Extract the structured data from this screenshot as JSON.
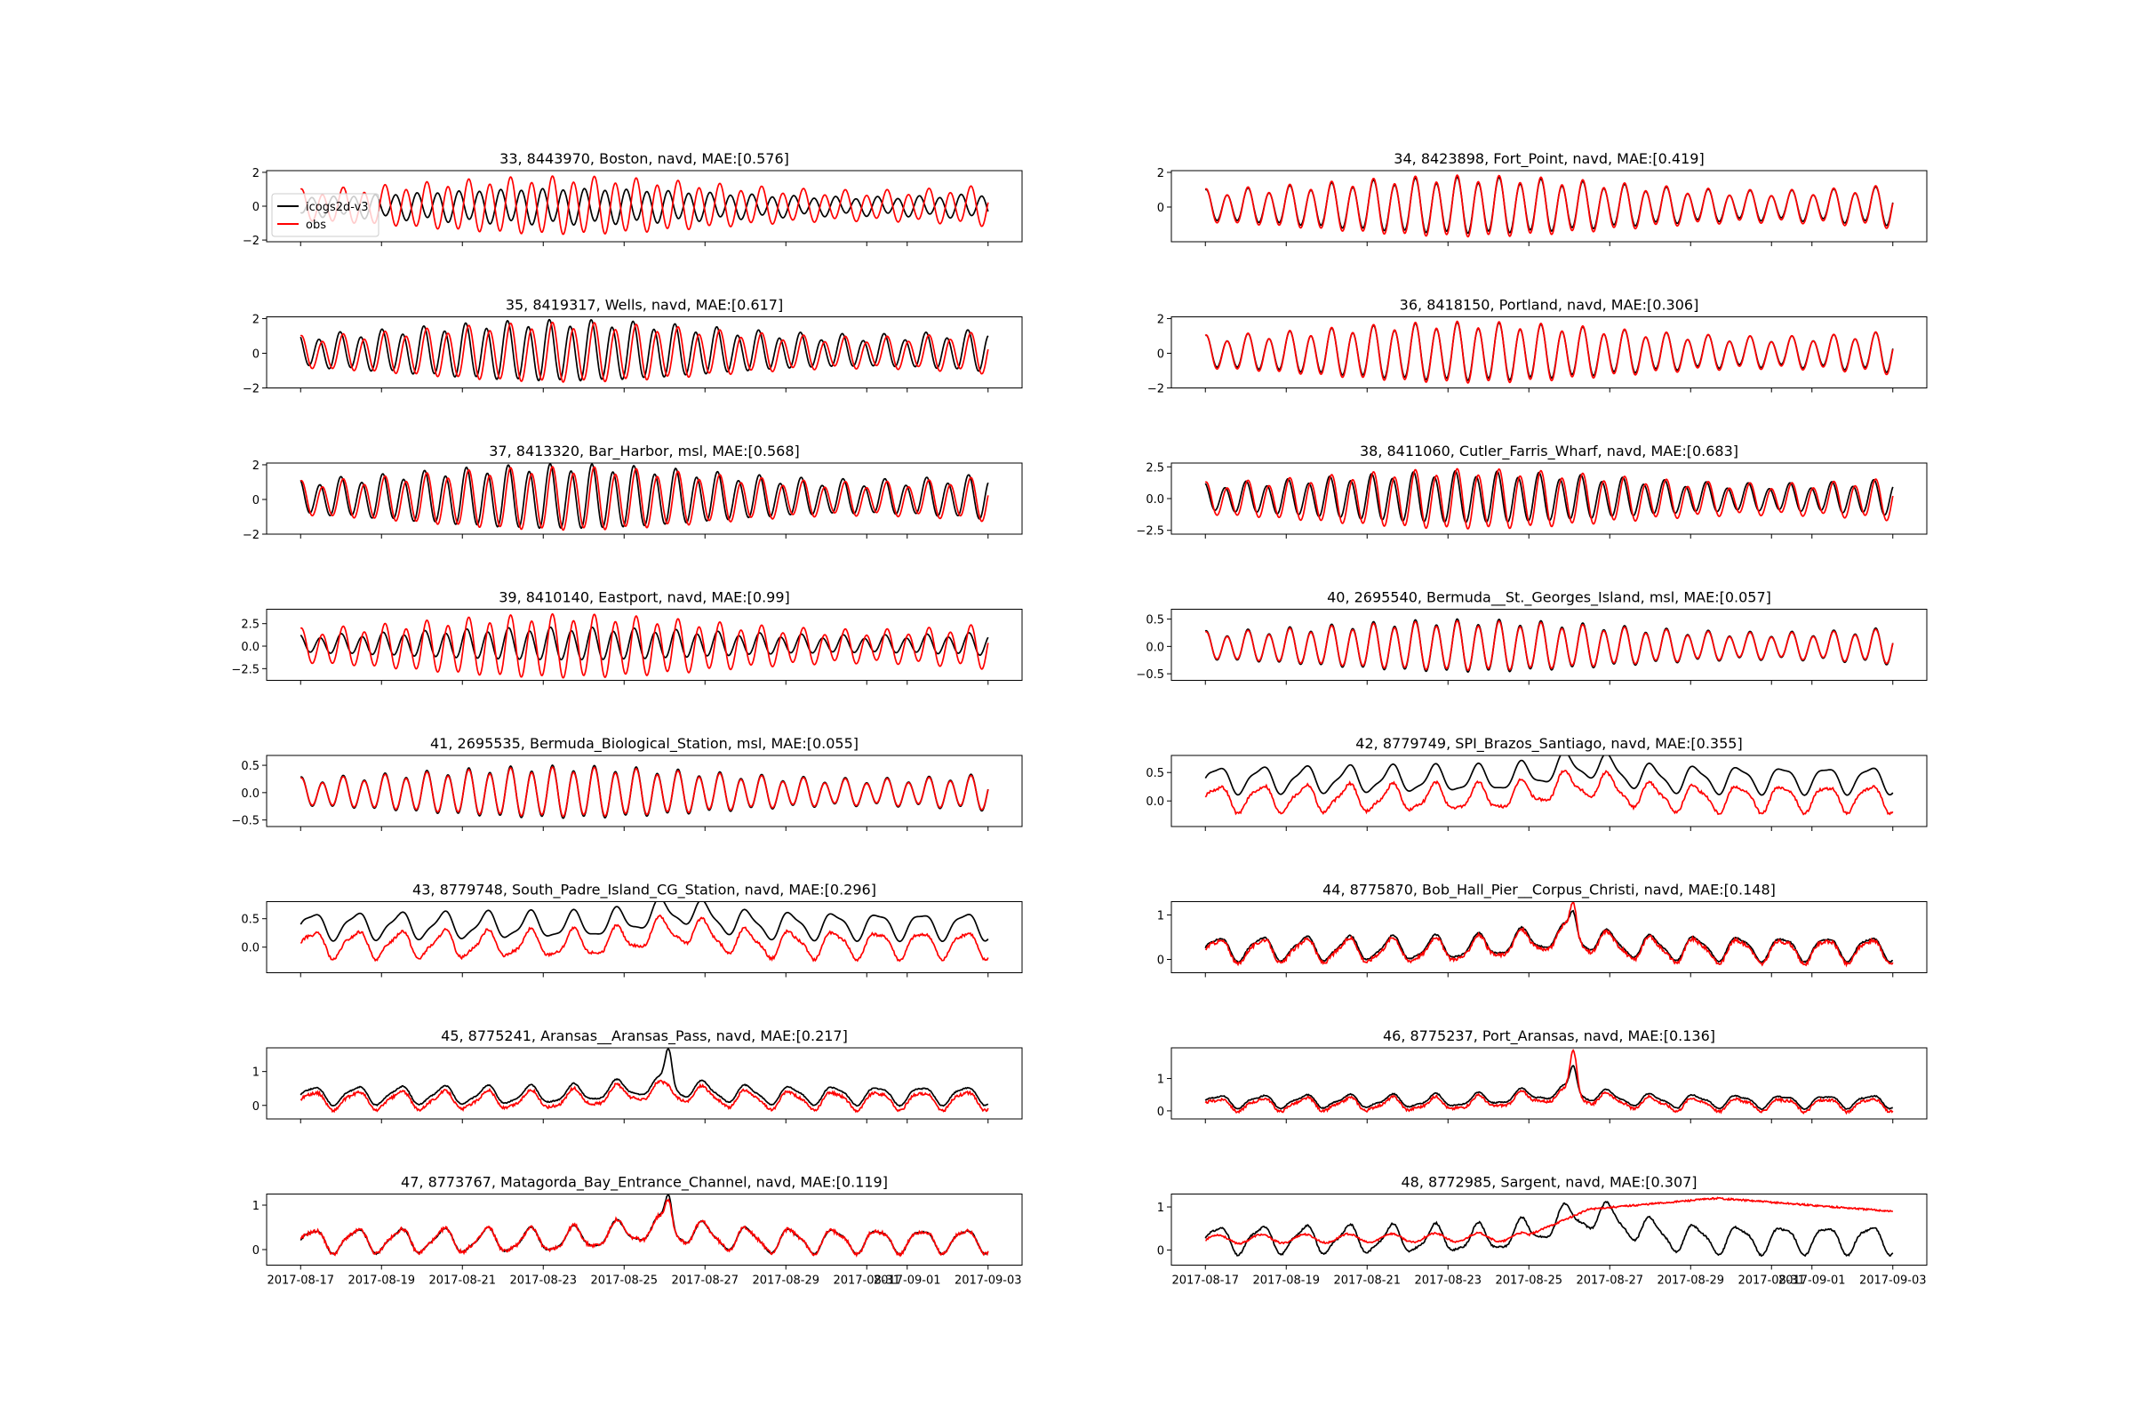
{
  "chart_data": {
    "type": "line",
    "x_range": [
      "2017-08-17",
      "2017-09-03"
    ],
    "x_ticks": [
      "2017-08-17",
      "2017-08-19",
      "2017-08-21",
      "2017-08-23",
      "2017-08-25",
      "2017-08-27",
      "2017-08-29",
      "2017-08-31",
      "2017-09-01",
      "2017-09-03"
    ],
    "legend": {
      "placement": "upper-left of first panel",
      "entries": [
        {
          "label": "icogs2d-v3",
          "color": "#000000"
        },
        {
          "label": "obs",
          "color": "#ff0000"
        }
      ]
    },
    "colors": {
      "model": "#000000",
      "obs": "#ff0000"
    },
    "panels": [
      {
        "title": "33, 8443970, Boston, navd, MAE:[0.576]",
        "ylim": [
          -2.1,
          2.1
        ],
        "yticks": [
          "2",
          "0",
          "−2"
        ],
        "yticks_values": [
          2,
          0,
          -2
        ],
        "kind": "semi",
        "model_amp": 1.0,
        "obs_amp": 1.6,
        "model_offset": 0,
        "obs_offset": 0,
        "phase_shift": 0.25
      },
      {
        "title": "34, 8423898, Fort_Point, navd, MAE:[0.419]",
        "ylim": [
          -2.0,
          2.1
        ],
        "yticks": [
          "2",
          "0"
        ],
        "yticks_values": [
          2,
          0
        ],
        "kind": "semi",
        "model_amp": 1.5,
        "obs_amp": 1.65,
        "model_offset": 0.05,
        "obs_offset": 0,
        "phase_shift": 0
      },
      {
        "title": "35, 8419317, Wells, navd, MAE:[0.617]",
        "ylim": [
          -2.0,
          2.1
        ],
        "yticks": [
          "2",
          "0",
          "−2"
        ],
        "yticks_values": [
          2,
          0,
          -2
        ],
        "kind": "semi",
        "model_amp": 1.65,
        "obs_amp": 1.6,
        "model_offset": 0.1,
        "obs_offset": 0,
        "phase_shift": 0.08
      },
      {
        "title": "36, 8418150, Portland, navd, MAE:[0.306]",
        "ylim": [
          -2.0,
          2.1
        ],
        "yticks": [
          "2",
          "0",
          "−2"
        ],
        "yticks_values": [
          2,
          0,
          -2
        ],
        "kind": "semi",
        "model_amp": 1.55,
        "obs_amp": 1.65,
        "model_offset": 0.05,
        "obs_offset": 0,
        "phase_shift": 0
      },
      {
        "title": "37, 8413320, Bar_Harbor, msl, MAE:[0.568]",
        "ylim": [
          -2.0,
          2.1
        ],
        "yticks": [
          "2",
          "0",
          "−2"
        ],
        "yticks_values": [
          2,
          0,
          -2
        ],
        "kind": "semi",
        "model_amp": 1.75,
        "obs_amp": 1.7,
        "model_offset": 0.1,
        "obs_offset": 0,
        "phase_shift": 0.06
      },
      {
        "title": "38, 8411060, Cutler_Farris_Wharf, navd, MAE:[0.683]",
        "ylim": [
          -2.8,
          2.8
        ],
        "yticks": [
          "2.5",
          "0.0",
          "−2.5"
        ],
        "yticks_values": [
          2.5,
          0,
          -2.5
        ],
        "kind": "semi",
        "model_amp": 1.9,
        "obs_amp": 2.2,
        "model_offset": 0.05,
        "obs_offset": -0.1,
        "phase_shift": 0.05
      },
      {
        "title": "39, 8410140, Eastport, navd, MAE:[0.99]",
        "ylim": [
          -3.8,
          4.1
        ],
        "yticks": [
          "2.5",
          "0.0",
          "−2.5"
        ],
        "yticks_values": [
          2.5,
          0,
          -2.5
        ],
        "kind": "semi",
        "model_amp": 1.7,
        "obs_amp": 3.3,
        "model_offset": 0.2,
        "obs_offset": -0.1,
        "phase_shift": 0.05
      },
      {
        "title": "40, 2695540, Bermuda__St._Georges_Island, msl, MAE:[0.057]",
        "ylim": [
          -0.62,
          0.68
        ],
        "yticks": [
          "0.5",
          "0.0",
          "−0.5"
        ],
        "yticks_values": [
          0.5,
          0,
          -0.5
        ],
        "kind": "semi",
        "model_amp": 0.45,
        "obs_amp": 0.42,
        "model_offset": 0,
        "obs_offset": 0,
        "phase_shift": 0
      },
      {
        "title": "41, 2695535, Bermuda_Biological_Station, msl, MAE:[0.055]",
        "ylim": [
          -0.62,
          0.68
        ],
        "yticks": [
          "0.5",
          "0.0",
          "−0.5"
        ],
        "yticks_values": [
          0.5,
          0,
          -0.5
        ],
        "kind": "semi",
        "model_amp": 0.45,
        "obs_amp": 0.42,
        "model_offset": 0,
        "obs_offset": 0,
        "phase_shift": 0
      },
      {
        "title": "42, 8779749, SPI_Brazos_Santiago, navd, MAE:[0.355]",
        "ylim": [
          -0.45,
          0.8
        ],
        "yticks": [
          "0.5",
          "0.0"
        ],
        "yticks_values": [
          0.5,
          0
        ],
        "kind": "gulf",
        "model_offset": 0.38,
        "obs_offset": 0.05,
        "amp": 0.22
      },
      {
        "title": "43, 8779748, South_Padre_Island_CG_Station, navd, MAE:[0.296]",
        "ylim": [
          -0.45,
          0.8
        ],
        "yticks": [
          "0.5",
          "0.0"
        ],
        "yticks_values": [
          0.5,
          0
        ],
        "kind": "gulf",
        "model_offset": 0.38,
        "obs_offset": 0.05,
        "amp": 0.22
      },
      {
        "title": "44, 8775870, Bob_Hall_Pier__Corpus_Christi, navd, MAE:[0.148]",
        "ylim": [
          -0.3,
          1.3
        ],
        "yticks": [
          "1",
          "0"
        ],
        "yticks_values": [
          1,
          0
        ],
        "kind": "surge",
        "model_offset": 0.25,
        "obs_offset": 0.2,
        "amp": 0.25,
        "peak_model": 1.0,
        "peak_obs": 1.2
      },
      {
        "title": "45, 8775241, Aransas__Aransas_Pass, navd, MAE:[0.217]",
        "ylim": [
          -0.4,
          1.7
        ],
        "yticks": [
          "1",
          "0"
        ],
        "yticks_values": [
          1,
          0
        ],
        "kind": "surge",
        "model_offset": 0.3,
        "obs_offset": 0.15,
        "amp": 0.25,
        "peak_model": 1.6,
        "peak_obs": 0.5
      },
      {
        "title": "46, 8775237, Port_Aransas, navd, MAE:[0.136]",
        "ylim": [
          -0.25,
          1.95
        ],
        "yticks": [
          "1",
          "0"
        ],
        "yticks_values": [
          1,
          0
        ],
        "kind": "surge",
        "model_offset": 0.3,
        "obs_offset": 0.2,
        "amp": 0.18,
        "peak_model": 1.35,
        "peak_obs": 1.85
      },
      {
        "title": "47, 8773767, Matagorda_Bay_Entrance_Channel, navd, MAE:[0.119]",
        "ylim": [
          -0.35,
          1.25
        ],
        "yticks": [
          "1",
          "0"
        ],
        "yticks_values": [
          1,
          0
        ],
        "kind": "surge",
        "model_offset": 0.2,
        "obs_offset": 0.2,
        "amp": 0.25,
        "peak_model": 1.15,
        "peak_obs": 1.05
      },
      {
        "title": "48, 8772985, Sargent, navd, MAE:[0.307]",
        "ylim": [
          -0.35,
          1.3
        ],
        "yticks": [
          "1",
          "0"
        ],
        "yticks_values": [
          1,
          0
        ],
        "kind": "sargent",
        "model_offset": 0.25,
        "obs_offset": 0.25,
        "amp": 0.3
      }
    ]
  }
}
